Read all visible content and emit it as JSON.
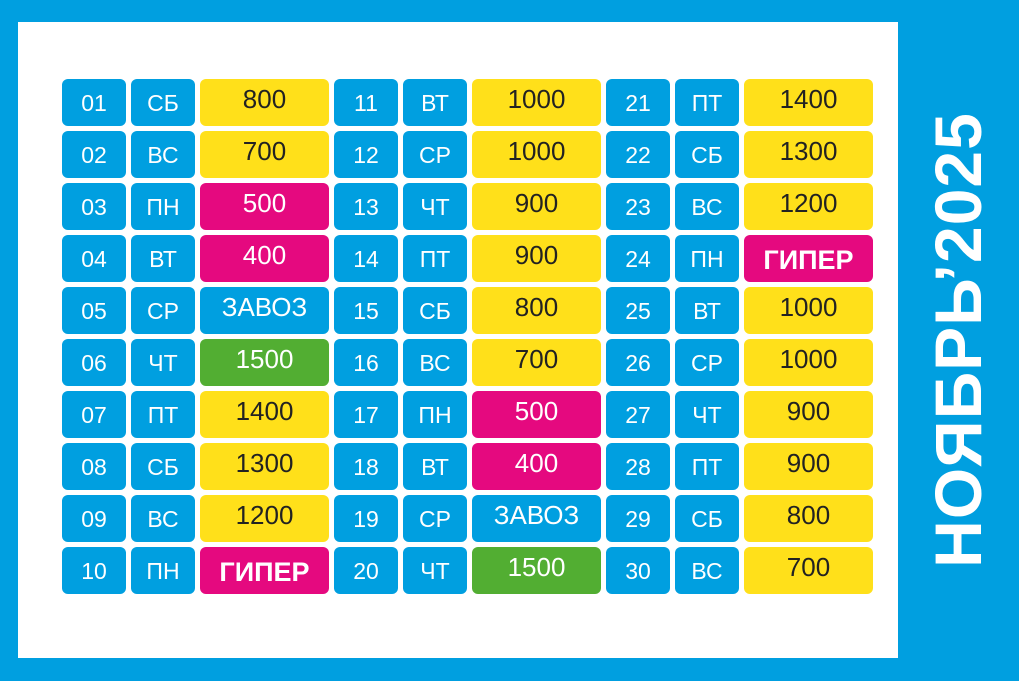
{
  "title": "НОЯБРЬ’2025",
  "colors": {
    "background": "#009fe0",
    "yellow": "#ffe01a",
    "pink": "#e5097f",
    "green": "#52ae32",
    "blue": "#009fe0"
  },
  "days": [
    {
      "num": "01",
      "dow": "СБ",
      "value": "800",
      "color": "yellow"
    },
    {
      "num": "02",
      "dow": "ВС",
      "value": "700",
      "color": "yellow"
    },
    {
      "num": "03",
      "dow": "ПН",
      "value": "500",
      "color": "pink"
    },
    {
      "num": "04",
      "dow": "ВТ",
      "value": "400",
      "color": "pink"
    },
    {
      "num": "05",
      "dow": "СР",
      "value": "ЗАВОЗ",
      "color": "blue"
    },
    {
      "num": "06",
      "dow": "ЧТ",
      "value": "1500",
      "color": "green"
    },
    {
      "num": "07",
      "dow": "ПТ",
      "value": "1400",
      "color": "yellow"
    },
    {
      "num": "08",
      "dow": "СБ",
      "value": "1300",
      "color": "yellow"
    },
    {
      "num": "09",
      "dow": "ВС",
      "value": "1200",
      "color": "yellow"
    },
    {
      "num": "10",
      "dow": "ПН",
      "value": "ГИПЕР",
      "color": "hyper"
    },
    {
      "num": "11",
      "dow": "ВТ",
      "value": "1000",
      "color": "yellow"
    },
    {
      "num": "12",
      "dow": "СР",
      "value": "1000",
      "color": "yellow"
    },
    {
      "num": "13",
      "dow": "ЧТ",
      "value": "900",
      "color": "yellow"
    },
    {
      "num": "14",
      "dow": "ПТ",
      "value": "900",
      "color": "yellow"
    },
    {
      "num": "15",
      "dow": "СБ",
      "value": "800",
      "color": "yellow"
    },
    {
      "num": "16",
      "dow": "ВС",
      "value": "700",
      "color": "yellow"
    },
    {
      "num": "17",
      "dow": "ПН",
      "value": "500",
      "color": "pink"
    },
    {
      "num": "18",
      "dow": "ВТ",
      "value": "400",
      "color": "pink"
    },
    {
      "num": "19",
      "dow": "СР",
      "value": "ЗАВОЗ",
      "color": "blue"
    },
    {
      "num": "20",
      "dow": "ЧТ",
      "value": "1500",
      "color": "green"
    },
    {
      "num": "21",
      "dow": "ПТ",
      "value": "1400",
      "color": "yellow"
    },
    {
      "num": "22",
      "dow": "СБ",
      "value": "1300",
      "color": "yellow"
    },
    {
      "num": "23",
      "dow": "ВС",
      "value": "1200",
      "color": "yellow"
    },
    {
      "num": "24",
      "dow": "ПН",
      "value": "ГИПЕР",
      "color": "hyper"
    },
    {
      "num": "25",
      "dow": "ВТ",
      "value": "1000",
      "color": "yellow"
    },
    {
      "num": "26",
      "dow": "СР",
      "value": "1000",
      "color": "yellow"
    },
    {
      "num": "27",
      "dow": "ЧТ",
      "value": "900",
      "color": "yellow"
    },
    {
      "num": "28",
      "dow": "ПТ",
      "value": "900",
      "color": "yellow"
    },
    {
      "num": "29",
      "dow": "СБ",
      "value": "800",
      "color": "yellow"
    },
    {
      "num": "30",
      "dow": "ВС",
      "value": "700",
      "color": "yellow"
    }
  ]
}
